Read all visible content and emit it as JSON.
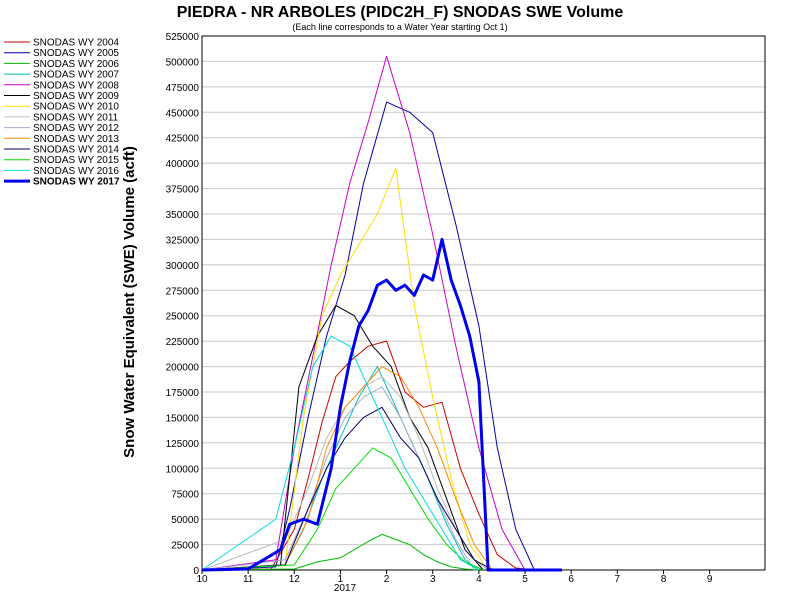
{
  "chart_data": {
    "type": "line",
    "title": "PIEDRA - NR ARBOLES (PIDC2H_F) SNODAS SWE Volume",
    "subtitle": "(Each line corresponds to a Water Year starting Oct 1)",
    "ylabel": "Snow Water Equivalent (SWE) Volume (acft)",
    "xlabel": "",
    "x_ticks": [
      "10",
      "11",
      "12",
      "1",
      "2",
      "3",
      "4",
      "5",
      "6",
      "7",
      "8",
      "9"
    ],
    "x_year_label": "2017",
    "x_unit": "month index (0 = Oct 1, 1 = Nov 1, ... 12 = end of Sep)",
    "xlim": [
      0,
      12.2
    ],
    "ylim": [
      0,
      525000
    ],
    "y_ticks": [
      "0",
      "25000",
      "50000",
      "75000",
      "100000",
      "125000",
      "150000",
      "175000",
      "200000",
      "225000",
      "250000",
      "275000",
      "300000",
      "325000",
      "350000",
      "375000",
      "400000",
      "425000",
      "450000",
      "475000",
      "500000",
      "525000"
    ],
    "grid": true,
    "legend_position": "left-outside",
    "series": [
      {
        "name": "SNODAS WY 2004",
        "color": "#cc0000",
        "bold": false,
        "x": [
          0,
          1.5,
          2.0,
          2.3,
          2.6,
          2.9,
          3.2,
          3.6,
          4.0,
          4.4,
          4.8,
          5.2,
          5.6,
          6.0,
          6.4,
          6.8,
          7.2
        ],
        "y": [
          0,
          1000,
          40000,
          90000,
          145000,
          190000,
          205000,
          220000,
          225000,
          175000,
          160000,
          165000,
          100000,
          55000,
          15000,
          2000,
          0
        ]
      },
      {
        "name": "SNODAS WY 2005",
        "color": "#0000aa",
        "bold": false,
        "x": [
          0,
          1.6,
          1.9,
          2.3,
          2.7,
          3.1,
          3.5,
          4.0,
          4.5,
          5.0,
          5.5,
          6.0,
          6.4,
          6.8,
          7.2
        ],
        "y": [
          0,
          3000,
          60000,
          150000,
          230000,
          290000,
          380000,
          460000,
          450000,
          430000,
          340000,
          240000,
          120000,
          40000,
          0
        ]
      },
      {
        "name": "SNODAS WY 2006",
        "color": "#00bb00",
        "bold": false,
        "x": [
          0,
          2.0,
          2.5,
          3.0,
          3.3,
          3.6,
          3.9,
          4.2,
          4.5,
          4.8,
          5.1,
          5.4,
          5.7,
          6.0
        ],
        "y": [
          0,
          1000,
          8000,
          12000,
          20000,
          28000,
          35000,
          30000,
          25000,
          15000,
          8000,
          3000,
          1000,
          0
        ]
      },
      {
        "name": "SNODAS WY 2007",
        "color": "#00bbbb",
        "bold": false,
        "x": [
          0,
          1.8,
          2.2,
          2.6,
          3.0,
          3.4,
          3.8,
          4.1,
          4.5,
          4.9,
          5.3,
          5.7,
          6.0
        ],
        "y": [
          0,
          5000,
          40000,
          90000,
          130000,
          170000,
          200000,
          170000,
          130000,
          90000,
          45000,
          10000,
          0
        ]
      },
      {
        "name": "SNODAS WY 2008",
        "color": "#cc00cc",
        "bold": false,
        "x": [
          0,
          1.6,
          2.0,
          2.4,
          2.8,
          3.2,
          3.6,
          4.0,
          4.5,
          5.0,
          5.5,
          6.0,
          6.5,
          7.0
        ],
        "y": [
          0,
          10000,
          120000,
          210000,
          300000,
          380000,
          440000,
          505000,
          430000,
          330000,
          220000,
          120000,
          40000,
          0
        ]
      },
      {
        "name": "SNODAS WY 2009",
        "color": "#000000",
        "bold": false,
        "x": [
          0,
          1.7,
          2.1,
          2.5,
          2.9,
          3.3,
          3.7,
          4.1,
          4.5,
          4.9,
          5.3,
          5.7,
          6.1
        ],
        "y": [
          0,
          5000,
          180000,
          230000,
          260000,
          250000,
          220000,
          200000,
          150000,
          120000,
          70000,
          20000,
          0
        ]
      },
      {
        "name": "SNODAS WY 2010",
        "color": "#ffdd00",
        "bold": false,
        "x": [
          0,
          1.8,
          2.2,
          2.6,
          3.0,
          3.4,
          3.8,
          4.2,
          4.6,
          5.0,
          5.4,
          5.8,
          6.2
        ],
        "y": [
          0,
          5000,
          150000,
          250000,
          290000,
          320000,
          350000,
          395000,
          260000,
          170000,
          90000,
          25000,
          0
        ]
      },
      {
        "name": "SNODAS WY 2011",
        "color": "#bbbbbb",
        "bold": false,
        "x": [
          0,
          1.8,
          2.3,
          2.7,
          3.1,
          3.5,
          3.9,
          4.3,
          4.7,
          5.1,
          5.5,
          5.9,
          6.2
        ],
        "y": [
          0,
          30000,
          80000,
          130000,
          160000,
          180000,
          190000,
          170000,
          130000,
          80000,
          40000,
          10000,
          0
        ]
      },
      {
        "name": "SNODAS WY 2012",
        "color": "#aaaacc",
        "bold": false,
        "x": [
          0,
          1.8,
          2.3,
          2.7,
          3.1,
          3.5,
          3.9,
          4.3,
          4.7,
          5.1,
          5.5,
          5.9
        ],
        "y": [
          0,
          10000,
          60000,
          110000,
          150000,
          170000,
          180000,
          150000,
          110000,
          70000,
          30000,
          0
        ]
      },
      {
        "name": "SNODAS WY 2013",
        "color": "#ff8800",
        "bold": false,
        "x": [
          0,
          1.8,
          2.3,
          2.7,
          3.1,
          3.5,
          3.9,
          4.3,
          4.7,
          5.1,
          5.5,
          5.9,
          6.3
        ],
        "y": [
          0,
          5000,
          50000,
          120000,
          160000,
          180000,
          200000,
          190000,
          160000,
          120000,
          70000,
          25000,
          0
        ]
      },
      {
        "name": "SNODAS WY 2014",
        "color": "#000066",
        "bold": false,
        "x": [
          0,
          1.8,
          2.3,
          2.7,
          3.1,
          3.5,
          3.9,
          4.3,
          4.7,
          5.1,
          5.5,
          5.9,
          6.3
        ],
        "y": [
          0,
          5000,
          60000,
          100000,
          130000,
          150000,
          160000,
          130000,
          110000,
          70000,
          40000,
          10000,
          0
        ]
      },
      {
        "name": "SNODAS WY 2015",
        "color": "#00dd00",
        "bold": false,
        "x": [
          0,
          2.0,
          2.5,
          2.9,
          3.3,
          3.7,
          4.1,
          4.5,
          4.9,
          5.3,
          5.7,
          6.1
        ],
        "y": [
          0,
          5000,
          40000,
          80000,
          100000,
          120000,
          110000,
          80000,
          50000,
          25000,
          8000,
          0
        ]
      },
      {
        "name": "SNODAS WY 2016",
        "color": "#00dddd",
        "bold": false,
        "x": [
          0,
          1.6,
          2.0,
          2.4,
          2.8,
          3.2,
          3.6,
          4.0,
          4.4,
          4.8,
          5.2,
          5.6,
          6.0
        ],
        "y": [
          0,
          50000,
          120000,
          200000,
          230000,
          220000,
          180000,
          140000,
          100000,
          70000,
          40000,
          10000,
          0
        ]
      },
      {
        "name": "SNODAS WY 2017",
        "color": "#0000ee",
        "bold": true,
        "x": [
          0,
          1.0,
          1.7,
          1.9,
          2.2,
          2.5,
          2.8,
          3.0,
          3.2,
          3.4,
          3.6,
          3.8,
          4.0,
          4.2,
          4.4,
          4.6,
          4.8,
          5.0,
          5.2,
          5.4,
          5.6,
          5.8,
          6.0,
          6.2,
          6.4,
          6.6,
          6.8,
          7.0,
          7.2,
          7.4,
          7.6,
          7.8
        ],
        "y": [
          0,
          1000,
          20000,
          45000,
          50000,
          45000,
          100000,
          160000,
          205000,
          240000,
          255000,
          280000,
          285000,
          275000,
          280000,
          270000,
          290000,
          285000,
          325000,
          285000,
          260000,
          230000,
          185000,
          0,
          0,
          0,
          0,
          0,
          0,
          0,
          0,
          0
        ]
      }
    ]
  }
}
